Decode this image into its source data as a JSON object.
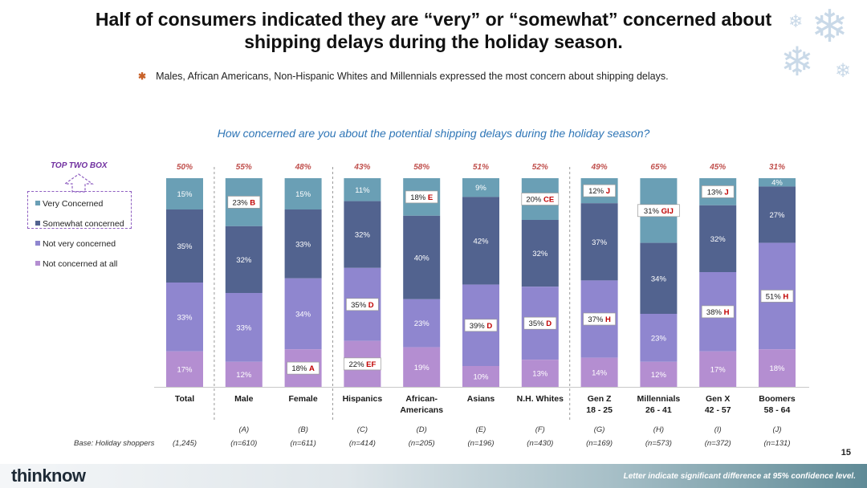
{
  "title_line1": "Half of consumers indicated they are “very” or “somewhat” concerned about",
  "title_line2": "shipping delays during the holiday season.",
  "bullet_text": "Males, African Americans, Non-Hispanic Whites and Millennials expressed the most concern about shipping delays.",
  "top_two_box_label": "TOP TWO BOX",
  "base_label": "Base: Holiday shoppers",
  "page_number": "15",
  "logo_text": "thinknow",
  "footer_note": "Letter indicate significant difference at 95% confidence level.",
  "colors": {
    "very": "#6a9fb5",
    "somewhat": "#52638f",
    "not_very": "#8f86cf",
    "not_at_all": "#b48ed1",
    "top2": "#c0504d",
    "sig_letter": "#c00000",
    "question": "#2e75b6",
    "top2_label": "#7030a0"
  },
  "chart_data": {
    "type": "bar",
    "stacked": true,
    "title": "How concerned are you about the potential shipping delays during the holiday season?",
    "ylim": [
      0,
      100
    ],
    "categories": [
      {
        "label": [
          "Total"
        ],
        "code": "",
        "n": "(1,245)"
      },
      {
        "label": [
          "Male"
        ],
        "code": "(A)",
        "n": "(n=610)"
      },
      {
        "label": [
          "Female"
        ],
        "code": "(B)",
        "n": "(n=611)"
      },
      {
        "label": [
          "Hispanics"
        ],
        "code": "(C)",
        "n": "(n=414)"
      },
      {
        "label": [
          "African-",
          "Americans"
        ],
        "code": "(D)",
        "n": "(n=205)"
      },
      {
        "label": [
          "Asians"
        ],
        "code": "(E)",
        "n": "(n=196)"
      },
      {
        "label": [
          "N.H. Whites"
        ],
        "code": "(F)",
        "n": "(n=430)"
      },
      {
        "label": [
          "Gen Z",
          "18 - 25"
        ],
        "code": "(G)",
        "n": "(n=169)"
      },
      {
        "label": [
          "Millennials",
          "26 - 41"
        ],
        "code": "(H)",
        "n": "(n=573)"
      },
      {
        "label": [
          "Gen X",
          "42 - 57"
        ],
        "code": "(I)",
        "n": "(n=372)"
      },
      {
        "label": [
          "Boomers",
          "58 - 64"
        ],
        "code": "(J)",
        "n": "(n=131)"
      }
    ],
    "top_two_box": [
      "50%",
      "55%",
      "48%",
      "43%",
      "58%",
      "51%",
      "52%",
      "49%",
      "65%",
      "45%",
      "31%"
    ],
    "series": [
      {
        "name": "Very Concerned",
        "values": [
          15,
          23,
          15,
          11,
          18,
          9,
          20,
          12,
          31,
          13,
          4
        ],
        "sig": [
          "",
          "B",
          "",
          "",
          "E",
          "",
          "CE",
          "J",
          "GIJ",
          "J",
          ""
        ]
      },
      {
        "name": "Somewhat concerned",
        "values": [
          35,
          32,
          33,
          32,
          40,
          42,
          32,
          37,
          34,
          32,
          27
        ],
        "sig": [
          "",
          "",
          "",
          "",
          "",
          "",
          "",
          "",
          "",
          "",
          ""
        ]
      },
      {
        "name": "Not very concerned",
        "values": [
          33,
          33,
          34,
          35,
          23,
          39,
          35,
          37,
          23,
          38,
          51
        ],
        "sig": [
          "",
          "",
          "",
          "D",
          "",
          "D",
          "D",
          "H",
          "",
          "H",
          "H"
        ]
      },
      {
        "name": "Not concerned at all",
        "values": [
          17,
          12,
          18,
          22,
          19,
          10,
          13,
          14,
          12,
          17,
          18
        ],
        "sig": [
          "",
          "",
          "A",
          "EF",
          "",
          "",
          "",
          "",
          "",
          "",
          ""
        ]
      }
    ],
    "group_dividers_after": [
      0,
      2,
      6
    ]
  }
}
